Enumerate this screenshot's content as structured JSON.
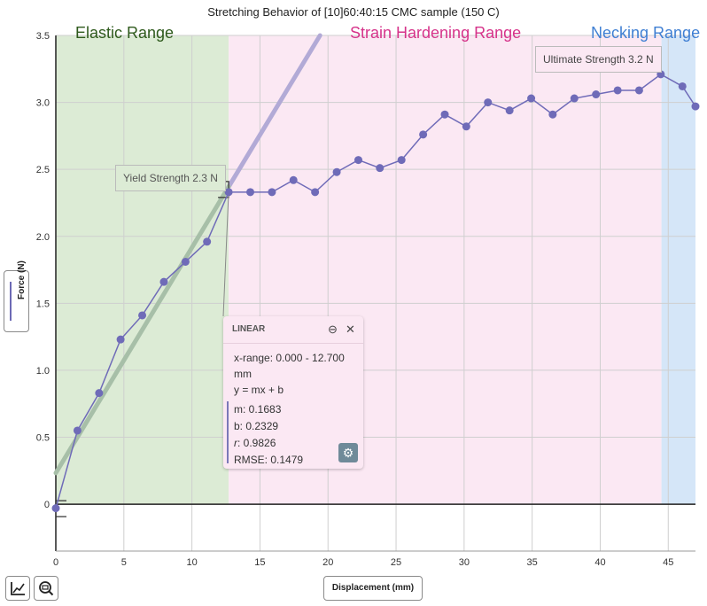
{
  "chart_data": {
    "type": "scatter",
    "title": "Stretching Behavior of [10]60:40:15 CMC sample (150 C)",
    "xlabel": "Displacement (mm)",
    "ylabel": "Force (N)",
    "xlim": [
      0,
      47
    ],
    "ylim": [
      -0.35,
      3.5
    ],
    "xticks": [
      0,
      5,
      10,
      15,
      20,
      25,
      30,
      35,
      40,
      45
    ],
    "yticks": [
      0,
      0.5,
      1.0,
      1.5,
      2.0,
      2.5,
      3.0,
      3.5
    ],
    "xtick_labels": [
      "0",
      "5",
      "10",
      "15",
      "20",
      "25",
      "30",
      "35",
      "40",
      "45"
    ],
    "ytick_labels": [
      "0",
      "0.5",
      "1.0",
      "1.5",
      "2.0",
      "2.5",
      "3.0",
      "3.5"
    ],
    "grid": true,
    "regions": [
      {
        "label": "Elastic Range",
        "x0": 0,
        "x1": 12.7,
        "color": "#dcebd5",
        "label_color": "#2e5a1c"
      },
      {
        "label": "Strain Hardening Range",
        "x0": 12.7,
        "x1": 44.5,
        "color": "#fbe8f3",
        "label_color": "#d6338a"
      },
      {
        "label": "Necking Range",
        "x0": 44.5,
        "x1": 47,
        "color": "#d5e6f8",
        "label_color": "#3f7fd3"
      }
    ],
    "series": [
      {
        "color": "#6f6bb8",
        "x": [
          0,
          1.59,
          3.18,
          4.76,
          6.35,
          7.94,
          9.53,
          11.11,
          12.7,
          14.29,
          15.88,
          17.46,
          19.05,
          20.64,
          22.23,
          23.81,
          25.4,
          26.99,
          28.58,
          30.16,
          31.75,
          33.34,
          34.93,
          36.51,
          38.1,
          39.69,
          41.28,
          42.86,
          44.45,
          46.04,
          47.0
        ],
        "y": [
          -0.03,
          0.55,
          0.83,
          1.23,
          1.41,
          1.66,
          1.81,
          1.96,
          2.33,
          2.33,
          2.33,
          2.42,
          2.33,
          2.48,
          2.57,
          2.51,
          2.57,
          2.76,
          2.91,
          2.82,
          3.0,
          2.94,
          3.03,
          2.91,
          3.03,
          3.06,
          3.09,
          3.09,
          3.21,
          3.12,
          2.97
        ]
      }
    ],
    "fit": {
      "type": "linear",
      "m": 0.1683,
      "b": 0.2329,
      "x_range": [
        0,
        12.7
      ],
      "color": "#a7bfa8",
      "extension_color": "#b2aad6"
    },
    "annotations": [
      {
        "text": "Yield Strength 2.3 N",
        "x": 12.7,
        "y": 2.33
      },
      {
        "text": "Ultimate Strength 3.2 N",
        "x": 44.45,
        "y": 3.21
      }
    ]
  },
  "linear_box": {
    "header": "LINEAR",
    "x_range": "x-range: 0.000 - 12.700",
    "x_unit": "mm",
    "equation": "y = mx + b",
    "m": "m: 0.1683",
    "b": "b: 0.2329",
    "r_label": "r",
    "r_value": ": 0.9826",
    "rmse": "RMSE: 0.1479",
    "minimize_icon": "minimize-icon",
    "close_icon": "close-icon",
    "settings_icon": "gear-icon"
  },
  "toolbar": {
    "graph_icon": "graph-icon",
    "zoom_icon": "zoom-out-icon"
  }
}
